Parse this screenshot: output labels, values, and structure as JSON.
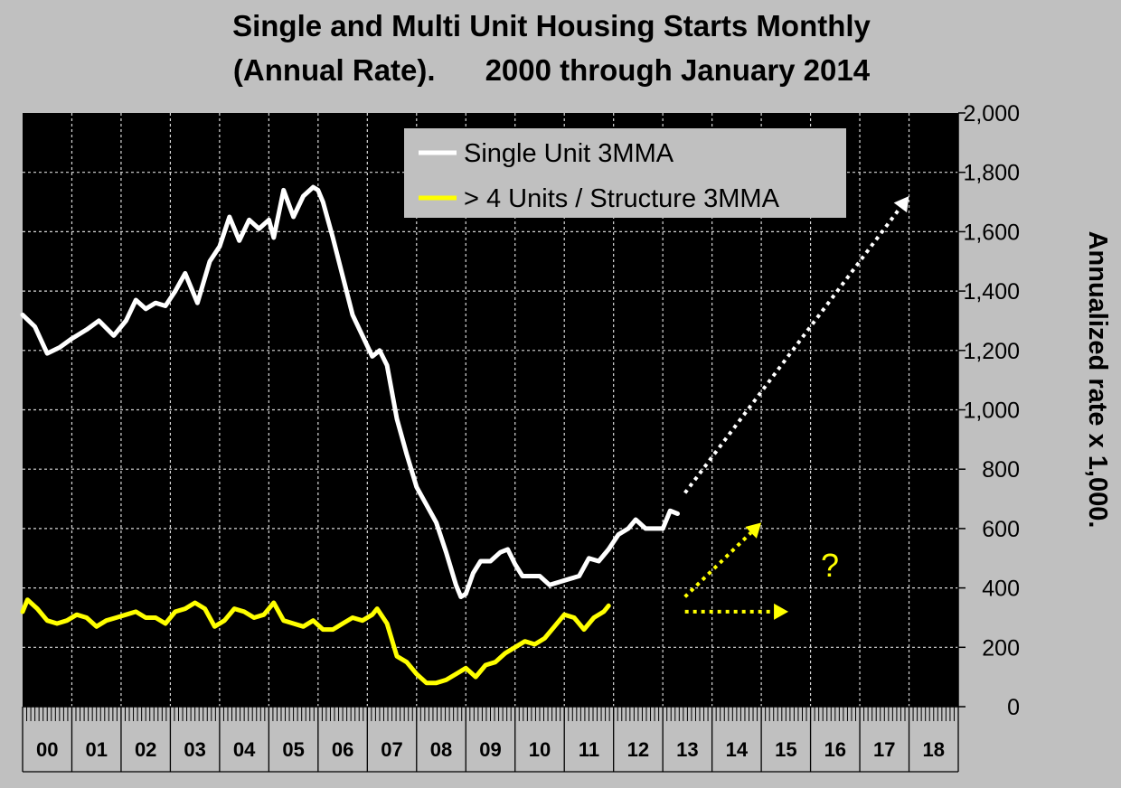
{
  "chart_data": {
    "type": "line",
    "title_line1": "Single and Multi Unit Housing Starts Monthly",
    "title_line2": "(Annual Rate).      2000 through January 2014",
    "ylabel": "Annualized rate x 1,000.",
    "ylim": [
      0,
      2000
    ],
    "yticks": [
      "0",
      "200",
      "400",
      "600",
      "800",
      "1,000",
      "1,200",
      "1,400",
      "1,600",
      "1,800",
      "2,000"
    ],
    "ytick_values": [
      0,
      200,
      400,
      600,
      800,
      1000,
      1200,
      1400,
      1600,
      1800,
      2000
    ],
    "xlim_years": [
      2000,
      2019
    ],
    "xtick_labels": [
      "00",
      "01",
      "02",
      "03",
      "04",
      "05",
      "06",
      "07",
      "08",
      "09",
      "10",
      "11",
      "12",
      "13",
      "14",
      "15",
      "16",
      "17",
      "18"
    ],
    "grid": true,
    "legend_position": "top-right",
    "colors": {
      "single": "#ffffff",
      "multi": "#ffff00",
      "plot_bg": "#000000",
      "page_bg": "#c0c0c0",
      "legend_bg": "#c0c0c0"
    },
    "series": [
      {
        "name": "Single Unit 3MMA",
        "color": "#ffffff",
        "points": [
          [
            2000.0,
            1320
          ],
          [
            2000.25,
            1280
          ],
          [
            2000.5,
            1190
          ],
          [
            2000.75,
            1210
          ],
          [
            2001.0,
            1240
          ],
          [
            2001.3,
            1270
          ],
          [
            2001.55,
            1300
          ],
          [
            2001.85,
            1250
          ],
          [
            2002.1,
            1300
          ],
          [
            2002.3,
            1370
          ],
          [
            2002.5,
            1340
          ],
          [
            2002.7,
            1360
          ],
          [
            2002.9,
            1350
          ],
          [
            2003.1,
            1400
          ],
          [
            2003.3,
            1460
          ],
          [
            2003.55,
            1360
          ],
          [
            2003.8,
            1500
          ],
          [
            2004.0,
            1550
          ],
          [
            2004.2,
            1650
          ],
          [
            2004.4,
            1570
          ],
          [
            2004.6,
            1640
          ],
          [
            2004.8,
            1610
          ],
          [
            2005.0,
            1640
          ],
          [
            2005.1,
            1580
          ],
          [
            2005.3,
            1740
          ],
          [
            2005.5,
            1650
          ],
          [
            2005.7,
            1720
          ],
          [
            2005.9,
            1750
          ],
          [
            2006.0,
            1740
          ],
          [
            2006.1,
            1700
          ],
          [
            2006.3,
            1580
          ],
          [
            2006.5,
            1450
          ],
          [
            2006.7,
            1320
          ],
          [
            2006.9,
            1250
          ],
          [
            2007.1,
            1180
          ],
          [
            2007.25,
            1200
          ],
          [
            2007.4,
            1150
          ],
          [
            2007.6,
            970
          ],
          [
            2007.8,
            850
          ],
          [
            2008.0,
            740
          ],
          [
            2008.2,
            680
          ],
          [
            2008.4,
            620
          ],
          [
            2008.6,
            520
          ],
          [
            2008.8,
            410
          ],
          [
            2008.9,
            370
          ],
          [
            2009.0,
            380
          ],
          [
            2009.15,
            450
          ],
          [
            2009.3,
            490
          ],
          [
            2009.5,
            490
          ],
          [
            2009.7,
            520
          ],
          [
            2009.85,
            530
          ],
          [
            2010.0,
            480
          ],
          [
            2010.15,
            440
          ],
          [
            2010.35,
            440
          ],
          [
            2010.5,
            440
          ],
          [
            2010.7,
            410
          ],
          [
            2010.9,
            420
          ],
          [
            2011.1,
            430
          ],
          [
            2011.3,
            440
          ],
          [
            2011.5,
            500
          ],
          [
            2011.7,
            490
          ],
          [
            2011.9,
            530
          ],
          [
            2012.1,
            580
          ],
          [
            2012.3,
            600
          ],
          [
            2012.45,
            630
          ],
          [
            2012.65,
            600
          ],
          [
            2012.85,
            600
          ],
          [
            2013.0,
            600
          ],
          [
            2013.15,
            660
          ],
          [
            2013.3,
            650
          ]
        ]
      },
      {
        "name": "> 4 Units / Structure 3MMA",
        "color": "#ffff00",
        "points": [
          [
            2000.0,
            320
          ],
          [
            2000.1,
            360
          ],
          [
            2000.3,
            330
          ],
          [
            2000.5,
            290
          ],
          [
            2000.7,
            280
          ],
          [
            2000.9,
            290
          ],
          [
            2001.1,
            310
          ],
          [
            2001.3,
            300
          ],
          [
            2001.5,
            270
          ],
          [
            2001.7,
            290
          ],
          [
            2001.9,
            300
          ],
          [
            2002.1,
            310
          ],
          [
            2002.3,
            320
          ],
          [
            2002.5,
            300
          ],
          [
            2002.7,
            300
          ],
          [
            2002.9,
            280
          ],
          [
            2003.1,
            320
          ],
          [
            2003.3,
            330
          ],
          [
            2003.5,
            350
          ],
          [
            2003.7,
            330
          ],
          [
            2003.9,
            270
          ],
          [
            2004.1,
            290
          ],
          [
            2004.3,
            330
          ],
          [
            2004.5,
            320
          ],
          [
            2004.7,
            300
          ],
          [
            2004.9,
            310
          ],
          [
            2005.1,
            350
          ],
          [
            2005.3,
            290
          ],
          [
            2005.5,
            280
          ],
          [
            2005.7,
            270
          ],
          [
            2005.9,
            290
          ],
          [
            2006.1,
            260
          ],
          [
            2006.3,
            260
          ],
          [
            2006.5,
            280
          ],
          [
            2006.7,
            300
          ],
          [
            2006.9,
            290
          ],
          [
            2007.1,
            310
          ],
          [
            2007.2,
            330
          ],
          [
            2007.4,
            280
          ],
          [
            2007.6,
            170
          ],
          [
            2007.8,
            150
          ],
          [
            2008.0,
            110
          ],
          [
            2008.2,
            80
          ],
          [
            2008.4,
            80
          ],
          [
            2008.6,
            90
          ],
          [
            2008.8,
            110
          ],
          [
            2009.0,
            130
          ],
          [
            2009.2,
            100
          ],
          [
            2009.4,
            140
          ],
          [
            2009.6,
            150
          ],
          [
            2009.8,
            180
          ],
          [
            2010.0,
            200
          ],
          [
            2010.2,
            220
          ],
          [
            2010.4,
            210
          ],
          [
            2010.6,
            230
          ],
          [
            2010.8,
            270
          ],
          [
            2011.0,
            310
          ],
          [
            2011.2,
            300
          ],
          [
            2011.4,
            260
          ],
          [
            2011.6,
            300
          ],
          [
            2011.8,
            320
          ],
          [
            2011.9,
            340
          ]
        ]
      }
    ],
    "projections": [
      {
        "color": "#ffffff",
        "from": [
          2013.45,
          720
        ],
        "to": [
          2018.0,
          1720
        ]
      },
      {
        "color": "#ffff00",
        "from": [
          2013.45,
          370
        ],
        "to": [
          2015.0,
          620
        ]
      },
      {
        "color": "#ffff00",
        "from": [
          2013.45,
          320
        ],
        "to": [
          2015.55,
          320
        ]
      }
    ],
    "annotation": "?"
  }
}
